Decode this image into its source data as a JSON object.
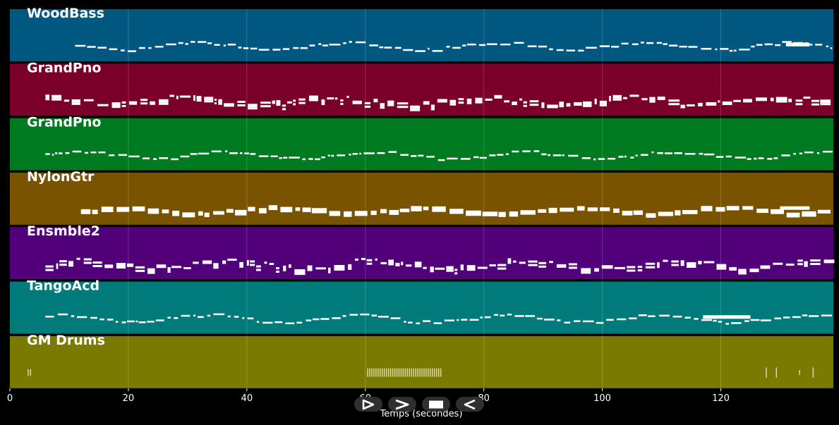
{
  "chart_data": {
    "type": "piano-roll",
    "xlabel": "Temps (secondes)",
    "xlim": [
      0,
      139
    ],
    "x_ticks": [
      0,
      20,
      40,
      60,
      80,
      100,
      120
    ],
    "grid": true,
    "tracks": [
      {
        "name": "WoodBass",
        "color": "#005880",
        "start": 11,
        "end": 139,
        "style": "thin",
        "segments": [
          [
            131,
            135
          ]
        ]
      },
      {
        "name": "GrandPno",
        "color": "#7a002a",
        "start": 6,
        "end": 139,
        "style": "chunky",
        "segments": []
      },
      {
        "name": "GrandPno",
        "color": "#007a20",
        "start": 6,
        "end": 139,
        "style": "thin",
        "segments": []
      },
      {
        "name": "NylonGtr",
        "color": "#7a5300",
        "start": 12,
        "end": 139,
        "style": "blocks",
        "segments": [
          [
            130,
            135
          ]
        ]
      },
      {
        "name": "Ensmble2",
        "color": "#52007a",
        "start": 6,
        "end": 139,
        "style": "chunky",
        "segments": []
      },
      {
        "name": "TangoAcd",
        "color": "#007a7a",
        "start": 6,
        "end": 139,
        "style": "thin",
        "segments": [
          [
            117,
            125
          ]
        ]
      },
      {
        "name": "GM Drums",
        "color": "#7a7a00",
        "start": 3,
        "end": 139,
        "style": "drums",
        "segments": []
      }
    ],
    "drum_hits": [
      {
        "from": 3.0,
        "to": 3.8,
        "height": 0.4
      },
      {
        "from": 60.3,
        "to": 73.0,
        "height": 0.5
      },
      {
        "from": 127.6,
        "to": 127.8,
        "height": 0.6
      },
      {
        "from": 129.3,
        "to": 129.5,
        "height": 0.6
      },
      {
        "from": 133.2,
        "to": 133.4,
        "height": 0.3
      },
      {
        "from": 135.5,
        "to": 135.7,
        "height": 0.6
      }
    ]
  },
  "transport": {
    "buttons": [
      "play",
      "fast-forward",
      "stop",
      "rewind"
    ]
  }
}
